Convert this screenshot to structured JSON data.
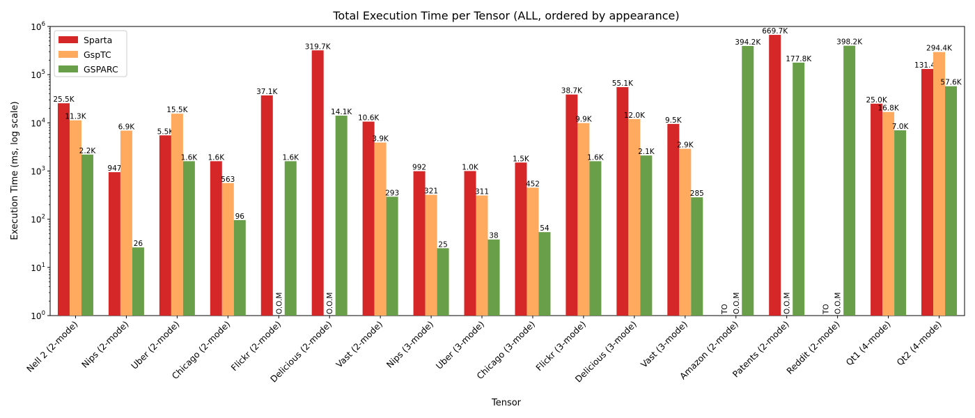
{
  "chart_data": {
    "type": "bar",
    "title": "Total Execution Time per Tensor (ALL, ordered by appearance)",
    "xlabel": "Tensor",
    "ylabel": "Execution Time (ms, log scale)",
    "yscale": "log",
    "ylim": [
      1,
      1000000
    ],
    "yticks": [
      {
        "value": 1,
        "base": "10",
        "exp": "0"
      },
      {
        "value": 10,
        "base": "10",
        "exp": "1"
      },
      {
        "value": 100,
        "base": "10",
        "exp": "2"
      },
      {
        "value": 1000,
        "base": "10",
        "exp": "3"
      },
      {
        "value": 10000,
        "base": "10",
        "exp": "4"
      },
      {
        "value": 100000,
        "base": "10",
        "exp": "5"
      },
      {
        "value": 1000000,
        "base": "10",
        "exp": "6"
      }
    ],
    "legend_position": "top-left",
    "grid": false,
    "categories": [
      "Nell 2 (2-mode)",
      "Nips (2-mode)",
      "Uber (2-mode)",
      "Chicago (2-mode)",
      "Flickr (2-mode)",
      "Delicious (2-mode)",
      "Vast (2-mode)",
      "Nips (3-mode)",
      "Uber (3-mode)",
      "Chicago (3-mode)",
      "Flickr (3-mode)",
      "Delicious (3-mode)",
      "Vast (3-mode)",
      "Amazon (2-mode)",
      "Patents (2-mode)",
      "Reddit (2-mode)",
      "Qt1 (4-mode)",
      "Qt2 (4-mode)"
    ],
    "series": [
      {
        "name": "Sparta",
        "color": "#d62728",
        "values": [
          25500,
          947,
          5500,
          1600,
          37100,
          319700,
          10600,
          992,
          1000,
          1500,
          38700,
          55100,
          9500,
          null,
          669700,
          null,
          25000,
          131400
        ],
        "labels": [
          "25.5K",
          "947",
          "5.5K",
          "1.6K",
          "37.1K",
          "319.7K",
          "10.6K",
          "992",
          "1.0K",
          "1.5K",
          "38.7K",
          "55.1K",
          "9.5K",
          "TO",
          "669.7K",
          "TO",
          "25.0K",
          "131.4K"
        ]
      },
      {
        "name": "GspTC",
        "color": "#ffaa5e",
        "values": [
          11300,
          6900,
          15500,
          563,
          null,
          null,
          3900,
          321,
          311,
          452,
          9900,
          12000,
          2900,
          null,
          null,
          null,
          16800,
          294400
        ],
        "labels": [
          "11.3K",
          "6.9K",
          "15.5K",
          "563",
          "O.O.M",
          "O.O.M",
          "3.9K",
          "321",
          "311",
          "452",
          "9.9K",
          "12.0K",
          "2.9K",
          "O.O.M",
          "O.O.M",
          "O.O.M",
          "16.8K",
          "294.4K"
        ]
      },
      {
        "name": "GSPARC",
        "color": "#6a9f4a",
        "values": [
          2200,
          26,
          1600,
          96,
          1600,
          14100,
          293,
          25,
          38,
          54,
          1600,
          2100,
          285,
          394200,
          177800,
          398200,
          7000,
          57600
        ],
        "labels": [
          "2.2K",
          "26",
          "1.6K",
          "96",
          "1.6K",
          "14.1K",
          "293",
          "25",
          "38",
          "54",
          "1.6K",
          "2.1K",
          "285",
          "394.2K",
          "177.8K",
          "398.2K",
          "7.0K",
          "57.6K"
        ]
      }
    ]
  }
}
